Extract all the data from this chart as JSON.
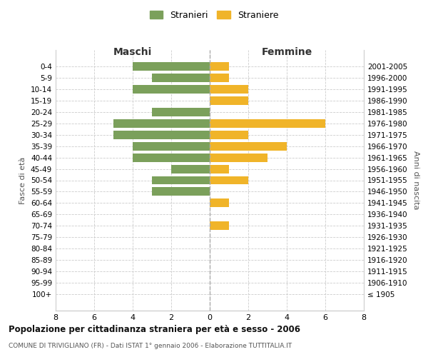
{
  "age_groups": [
    "0-4",
    "5-9",
    "10-14",
    "15-19",
    "20-24",
    "25-29",
    "30-34",
    "35-39",
    "40-44",
    "45-49",
    "50-54",
    "55-59",
    "60-64",
    "65-69",
    "70-74",
    "75-79",
    "80-84",
    "85-89",
    "90-94",
    "95-99",
    "100+"
  ],
  "birth_years": [
    "2001-2005",
    "1996-2000",
    "1991-1995",
    "1986-1990",
    "1981-1985",
    "1976-1980",
    "1971-1975",
    "1966-1970",
    "1961-1965",
    "1956-1960",
    "1951-1955",
    "1946-1950",
    "1941-1945",
    "1936-1940",
    "1931-1935",
    "1926-1930",
    "1921-1925",
    "1916-1920",
    "1911-1915",
    "1906-1910",
    "≤ 1905"
  ],
  "maschi": [
    4,
    3,
    4,
    0,
    3,
    5,
    5,
    4,
    4,
    2,
    3,
    3,
    0,
    0,
    0,
    0,
    0,
    0,
    0,
    0,
    0
  ],
  "femmine": [
    1,
    1,
    2,
    2,
    0,
    6,
    2,
    4,
    3,
    1,
    2,
    0,
    1,
    0,
    1,
    0,
    0,
    0,
    0,
    0,
    0
  ],
  "maschi_color": "#7ba05b",
  "femmine_color": "#f0b429",
  "background_color": "#ffffff",
  "grid_color": "#cccccc",
  "title": "Popolazione per cittadinanza straniera per età e sesso - 2006",
  "subtitle": "COMUNE DI TRIVIGLIANO (FR) - Dati ISTAT 1° gennaio 2006 - Elaborazione TUTTITALIA.IT",
  "xlabel_left": "Maschi",
  "xlabel_right": "Femmine",
  "ylabel_left": "Fasce di età",
  "ylabel_right": "Anni di nascita",
  "legend_maschi": "Stranieri",
  "legend_femmine": "Straniere",
  "xlim": 8,
  "bar_height": 0.75
}
